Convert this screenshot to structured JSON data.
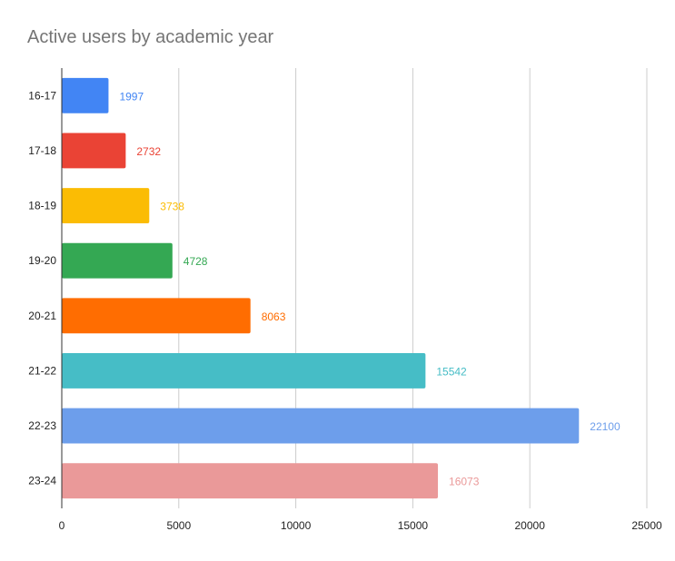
{
  "chart_data": {
    "type": "bar",
    "orientation": "horizontal",
    "title": "Active users by academic year",
    "xlabel": "",
    "ylabel": "",
    "xlim": [
      0,
      25000
    ],
    "x_ticks": [
      0,
      5000,
      10000,
      15000,
      20000,
      25000
    ],
    "grid": "vertical",
    "legend": "none",
    "categories": [
      "16-17",
      "17-18",
      "18-19",
      "19-20",
      "20-21",
      "21-22",
      "22-23",
      "23-24"
    ],
    "values": [
      1997,
      2732,
      3738,
      4728,
      8063,
      15542,
      22100,
      16073
    ],
    "colors": [
      "#4285f4",
      "#ea4335",
      "#fbbc04",
      "#34a853",
      "#ff6d01",
      "#46bdc6",
      "#6d9eeb",
      "#ea9999"
    ],
    "data_labels": true
  }
}
